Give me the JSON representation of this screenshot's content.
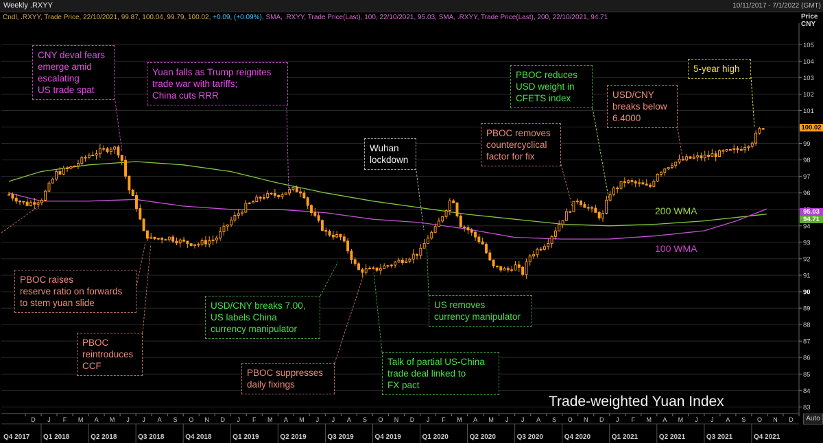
{
  "window": {
    "title": "Weekly .RXYY",
    "date_range": "10/11/2017 - 7/1/2022 (GMT)"
  },
  "legend": {
    "candles": "Cndl, .RXYY, Trade Price, 22/10/2021, 99.87, 100.04, 99.79, 100.02,",
    "change": "+0.09, (+0.09%),",
    "sma100": "SMA, .RXYY, Trade Price(Last),  100, 22/10/2021, 95.03,",
    "sma200": "SMA, .RXYY, Trade Price(Last),  200, 22/10/2021, 94.71"
  },
  "colors": {
    "candle": "#ff9d1c",
    "sma100": "#c34fd6",
    "sma200": "#7fc940",
    "grid": "#2a2a2a",
    "annotation_magenta": "#e64ce6",
    "annotation_salmon": "#f08a7a",
    "annotation_green": "#48e048",
    "annotation_yellow": "#f0e040"
  },
  "chart_data": {
    "type": "candlestick",
    "title": "Trade-weighted Yuan Index",
    "ylabel": "Price\nCNY",
    "ylim": [
      82.6,
      106.3
    ],
    "y_ticks": [
      83,
      84,
      85,
      86,
      87,
      88,
      89,
      90,
      91,
      92,
      93,
      94,
      95,
      96,
      97,
      98,
      99,
      100,
      101,
      102,
      103,
      104,
      105
    ],
    "last_price": "100.02",
    "sma100_last": "95.03",
    "sma200_last": "94.71",
    "x_month_labels": [
      "D",
      "J",
      "F",
      "M",
      "A",
      "M",
      "J",
      "J",
      "A",
      "S",
      "O",
      "N",
      "D",
      "J",
      "F",
      "M",
      "A",
      "M",
      "J",
      "J",
      "A",
      "S",
      "O",
      "N",
      "D",
      "J",
      "F",
      "M",
      "A",
      "M",
      "J",
      "J",
      "A",
      "S",
      "O",
      "N",
      "D",
      "J",
      "F",
      "M",
      "A",
      "M",
      "J",
      "J",
      "A",
      "S",
      "O",
      "N",
      "D",
      "J",
      "F",
      "M",
      "A",
      "M",
      "J",
      "J",
      "A",
      "S",
      "O",
      "N",
      "D",
      "J"
    ],
    "x_quarter_labels": [
      "Q4 2017",
      "Q1 2018",
      "Q2 2018",
      "Q3 2018",
      "Q4 2018",
      "Q1 2019",
      "Q2 2019",
      "Q3 2019",
      "Q4 2019",
      "Q1 2020",
      "Q2 2020",
      "Q3 2020",
      "Q4 2020",
      "Q1 2021",
      "Q2 2021",
      "Q3 2021",
      "Q4 2021"
    ],
    "close_path": [
      [
        2017.83,
        95.9
      ],
      [
        2017.92,
        95.3
      ],
      [
        2018.0,
        95.6
      ],
      [
        2018.08,
        97.2
      ],
      [
        2018.17,
        97.6
      ],
      [
        2018.25,
        98.3
      ],
      [
        2018.33,
        98.6
      ],
      [
        2018.38,
        98.8
      ],
      [
        2018.42,
        98.3
      ],
      [
        2018.46,
        96.3
      ],
      [
        2018.5,
        95.3
      ],
      [
        2018.54,
        93.6
      ],
      [
        2018.58,
        93.2
      ],
      [
        2018.67,
        93.3
      ],
      [
        2018.75,
        93.0
      ],
      [
        2018.83,
        92.9
      ],
      [
        2018.92,
        93.2
      ],
      [
        2019.0,
        94.3
      ],
      [
        2019.08,
        95.2
      ],
      [
        2019.17,
        95.8
      ],
      [
        2019.25,
        95.9
      ],
      [
        2019.33,
        96.2
      ],
      [
        2019.38,
        96.1
      ],
      [
        2019.42,
        94.9
      ],
      [
        2019.5,
        93.6
      ],
      [
        2019.58,
        93.3
      ],
      [
        2019.62,
        92.5
      ],
      [
        2019.67,
        91.3
      ],
      [
        2019.75,
        91.3
      ],
      [
        2019.83,
        91.6
      ],
      [
        2019.92,
        92.0
      ],
      [
        2020.0,
        92.4
      ],
      [
        2020.04,
        93.3
      ],
      [
        2020.08,
        93.8
      ],
      [
        2020.17,
        95.8
      ],
      [
        2020.21,
        94.1
      ],
      [
        2020.25,
        93.8
      ],
      [
        2020.33,
        92.9
      ],
      [
        2020.38,
        91.5
      ],
      [
        2020.46,
        91.3
      ],
      [
        2020.5,
        91.6
      ],
      [
        2020.54,
        91.1
      ],
      [
        2020.58,
        92.2
      ],
      [
        2020.67,
        93.0
      ],
      [
        2020.75,
        94.4
      ],
      [
        2020.83,
        95.6
      ],
      [
        2020.92,
        94.8
      ],
      [
        2020.96,
        94.5
      ],
      [
        2021.0,
        96.0
      ],
      [
        2021.08,
        96.7
      ],
      [
        2021.17,
        96.5
      ],
      [
        2021.21,
        96.3
      ],
      [
        2021.25,
        97.2
      ],
      [
        2021.33,
        97.8
      ],
      [
        2021.42,
        98.1
      ],
      [
        2021.5,
        98.2
      ],
      [
        2021.58,
        98.4
      ],
      [
        2021.67,
        98.6
      ],
      [
        2021.75,
        99.1
      ],
      [
        2021.79,
        99.8
      ],
      [
        2021.81,
        100.0
      ]
    ],
    "sma100_path": [
      [
        2017.83,
        96.0
      ],
      [
        2018.0,
        95.5
      ],
      [
        2018.25,
        95.5
      ],
      [
        2018.5,
        95.6
      ],
      [
        2018.75,
        95.2
      ],
      [
        2019.0,
        95.0
      ],
      [
        2019.25,
        95.0
      ],
      [
        2019.5,
        94.8
      ],
      [
        2019.75,
        94.4
      ],
      [
        2020.0,
        94.2
      ],
      [
        2020.25,
        93.8
      ],
      [
        2020.5,
        93.3
      ],
      [
        2020.75,
        93.2
      ],
      [
        2021.0,
        93.2
      ],
      [
        2021.25,
        93.4
      ],
      [
        2021.5,
        93.7
      ],
      [
        2021.67,
        94.3
      ],
      [
        2021.83,
        95.03
      ]
    ],
    "sma200_path": [
      [
        2017.83,
        96.7
      ],
      [
        2018.0,
        97.3
      ],
      [
        2018.25,
        97.7
      ],
      [
        2018.5,
        97.9
      ],
      [
        2018.75,
        97.7
      ],
      [
        2019.0,
        97.3
      ],
      [
        2019.25,
        96.6
      ],
      [
        2019.5,
        96.0
      ],
      [
        2019.75,
        95.5
      ],
      [
        2020.0,
        95.1
      ],
      [
        2020.25,
        94.7
      ],
      [
        2020.5,
        94.4
      ],
      [
        2020.75,
        94.1
      ],
      [
        2021.0,
        94.0
      ],
      [
        2021.25,
        94.1
      ],
      [
        2021.5,
        94.3
      ],
      [
        2021.83,
        94.71
      ]
    ],
    "series_labels": [
      {
        "name": "200 WMA",
        "color": "#9bd34a"
      },
      {
        "name": "100 WMA",
        "color": "#d040d0"
      }
    ],
    "annotations": [
      {
        "id": "cny-deval",
        "text": "CNY deval fears\nemerge amid\nescalating\nUS trade spat",
        "style": "magenta"
      },
      {
        "id": "yuan-falls",
        "text": "Yuan falls as Trump reignites\ntrade war with tariffs;\nChina cuts RRR",
        "style": "magenta"
      },
      {
        "id": "pboc-raises",
        "text": "PBOC raises\nreserve ratio on forwards\nto stem yuan slide",
        "style": "salmon"
      },
      {
        "id": "pboc-ccf",
        "text": "PBOC\nreintroduces\nCCF",
        "style": "salmon"
      },
      {
        "id": "usdcny-700",
        "text": "USD/CNY breaks 7.00,\nUS labels China\ncurrency manipulator",
        "style": "green"
      },
      {
        "id": "pboc-suppresses",
        "text": "PBOC suppresses\ndaily fixings",
        "style": "salmon"
      },
      {
        "id": "partial-deal",
        "text": "Talk of partial US-China\ntrade deal linked to\nFX pact",
        "style": "green"
      },
      {
        "id": "wuhan",
        "text": "Wuhan\nlockdown",
        "style": "white"
      },
      {
        "id": "us-removes",
        "text": "US removes\ncurrency manipulator",
        "style": "green"
      },
      {
        "id": "pboc-countercyclical",
        "text": "PBOC removes\ncountercyclical\nfactor for fix",
        "style": "salmon"
      },
      {
        "id": "pboc-cfets",
        "text": "PBOC reduces\nUSD weight in\nCFETS index",
        "style": "green"
      },
      {
        "id": "usdcny-64",
        "text": "USD/CNY\nbreaks below\n6.4000",
        "style": "salmon"
      },
      {
        "id": "five-year",
        "text": "5-year high",
        "style": "yellow"
      }
    ]
  },
  "controls": {
    "auto_label": "Auto"
  }
}
